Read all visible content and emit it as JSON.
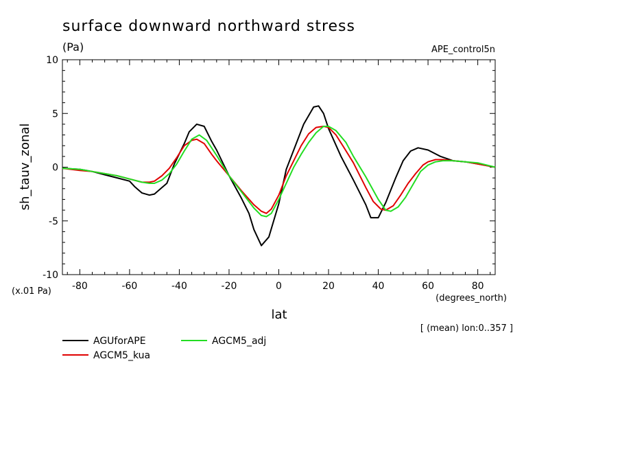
{
  "chart_data": {
    "type": "line",
    "title": "surface downward northward stress",
    "unit": "(Pa)",
    "experiment": "APE_control5n",
    "ylabel": "sh_tauv_zonal",
    "xlabel": "lat",
    "x_unit": "(degrees_north)",
    "y_scale_note": "(x.01 Pa)",
    "footnote": "[ (mean) lon:0..357 ]",
    "xlim": [
      -87,
      87
    ],
    "ylim": [
      -10,
      10
    ],
    "x_ticks": [
      -80,
      -60,
      -40,
      -20,
      0,
      20,
      40,
      60,
      80
    ],
    "x_tick_labels": [
      "-80",
      "-60",
      "-40",
      "-20",
      "0",
      "20",
      "40",
      "60",
      "80"
    ],
    "y_ticks": [
      -10,
      -5,
      0,
      5,
      10
    ],
    "y_tick_labels": [
      "-10",
      "-5",
      "0",
      "5",
      "10"
    ],
    "grid": false,
    "legend_position": "below plot",
    "series": [
      {
        "name": "AGUforAPE",
        "color": "#000000",
        "x": [
          -87,
          -80,
          -75,
          -70,
          -65,
          -60,
          -58,
          -55,
          -52,
          -50,
          -48,
          -45,
          -42,
          -38,
          -36,
          -33,
          -30,
          -27,
          -25,
          -20,
          -15,
          -12,
          -10,
          -7,
          -4,
          0,
          3,
          7,
          10,
          14,
          16,
          18,
          20,
          25,
          30,
          35,
          37,
          40,
          43,
          47,
          50,
          53,
          56,
          60,
          65,
          70,
          75,
          80,
          87
        ],
        "y": [
          -0.1,
          -0.2,
          -0.4,
          -0.7,
          -1.0,
          -1.3,
          -1.8,
          -2.4,
          -2.6,
          -2.5,
          -2.1,
          -1.5,
          0.3,
          2.2,
          3.3,
          4.0,
          3.8,
          2.4,
          1.6,
          -0.8,
          -2.9,
          -4.3,
          -5.8,
          -7.3,
          -6.5,
          -3.4,
          -0.2,
          2.2,
          4.0,
          5.6,
          5.7,
          5.0,
          3.6,
          1.0,
          -1.2,
          -3.5,
          -4.7,
          -4.7,
          -3.3,
          -1.0,
          0.6,
          1.5,
          1.8,
          1.6,
          1.0,
          0.6,
          0.5,
          0.3,
          0.0
        ]
      },
      {
        "name": "AGCM5_kua",
        "color": "#e00000",
        "x": [
          -87,
          -80,
          -75,
          -70,
          -65,
          -60,
          -55,
          -52,
          -50,
          -47,
          -44,
          -41,
          -38,
          -35,
          -33,
          -30,
          -27,
          -25,
          -20,
          -15,
          -10,
          -7,
          -5,
          -3,
          0,
          3,
          6,
          9,
          12,
          15,
          18,
          20,
          23,
          26,
          30,
          35,
          38,
          41,
          43,
          46,
          49,
          52,
          55,
          58,
          60,
          63,
          66,
          70,
          75,
          80,
          87
        ],
        "y": [
          -0.1,
          -0.3,
          -0.4,
          -0.6,
          -0.8,
          -1.1,
          -1.4,
          -1.4,
          -1.3,
          -0.8,
          -0.1,
          0.9,
          2.0,
          2.5,
          2.6,
          2.2,
          1.2,
          0.6,
          -0.8,
          -2.2,
          -3.5,
          -4.1,
          -4.3,
          -3.9,
          -2.6,
          -0.8,
          0.6,
          2.0,
          3.1,
          3.7,
          3.8,
          3.7,
          3.0,
          1.9,
          0.4,
          -1.9,
          -3.2,
          -3.9,
          -4.0,
          -3.6,
          -2.6,
          -1.5,
          -0.6,
          0.2,
          0.5,
          0.7,
          0.7,
          0.6,
          0.5,
          0.3,
          0.0
        ]
      },
      {
        "name": "AGCM5_adj",
        "color": "#22dd22",
        "x": [
          -87,
          -80,
          -75,
          -70,
          -65,
          -60,
          -55,
          -52,
          -50,
          -47,
          -44,
          -41,
          -38,
          -35,
          -32,
          -29,
          -25,
          -20,
          -15,
          -10,
          -7,
          -5,
          -3,
          0,
          3,
          6,
          9,
          12,
          15,
          18,
          20,
          23,
          27,
          30,
          35,
          40,
          43,
          45,
          48,
          51,
          54,
          57,
          60,
          63,
          66,
          70,
          75,
          80,
          87
        ],
        "y": [
          -0.1,
          -0.2,
          -0.4,
          -0.6,
          -0.8,
          -1.1,
          -1.4,
          -1.5,
          -1.5,
          -1.2,
          -0.6,
          0.3,
          1.5,
          2.6,
          3.0,
          2.5,
          1.1,
          -0.8,
          -2.3,
          -3.8,
          -4.5,
          -4.6,
          -4.3,
          -3.0,
          -1.5,
          0.0,
          1.2,
          2.3,
          3.2,
          3.8,
          3.8,
          3.4,
          2.3,
          1.0,
          -0.9,
          -3.0,
          -4.0,
          -4.1,
          -3.7,
          -2.8,
          -1.6,
          -0.4,
          0.2,
          0.5,
          0.6,
          0.6,
          0.5,
          0.4,
          0.0
        ]
      }
    ]
  }
}
